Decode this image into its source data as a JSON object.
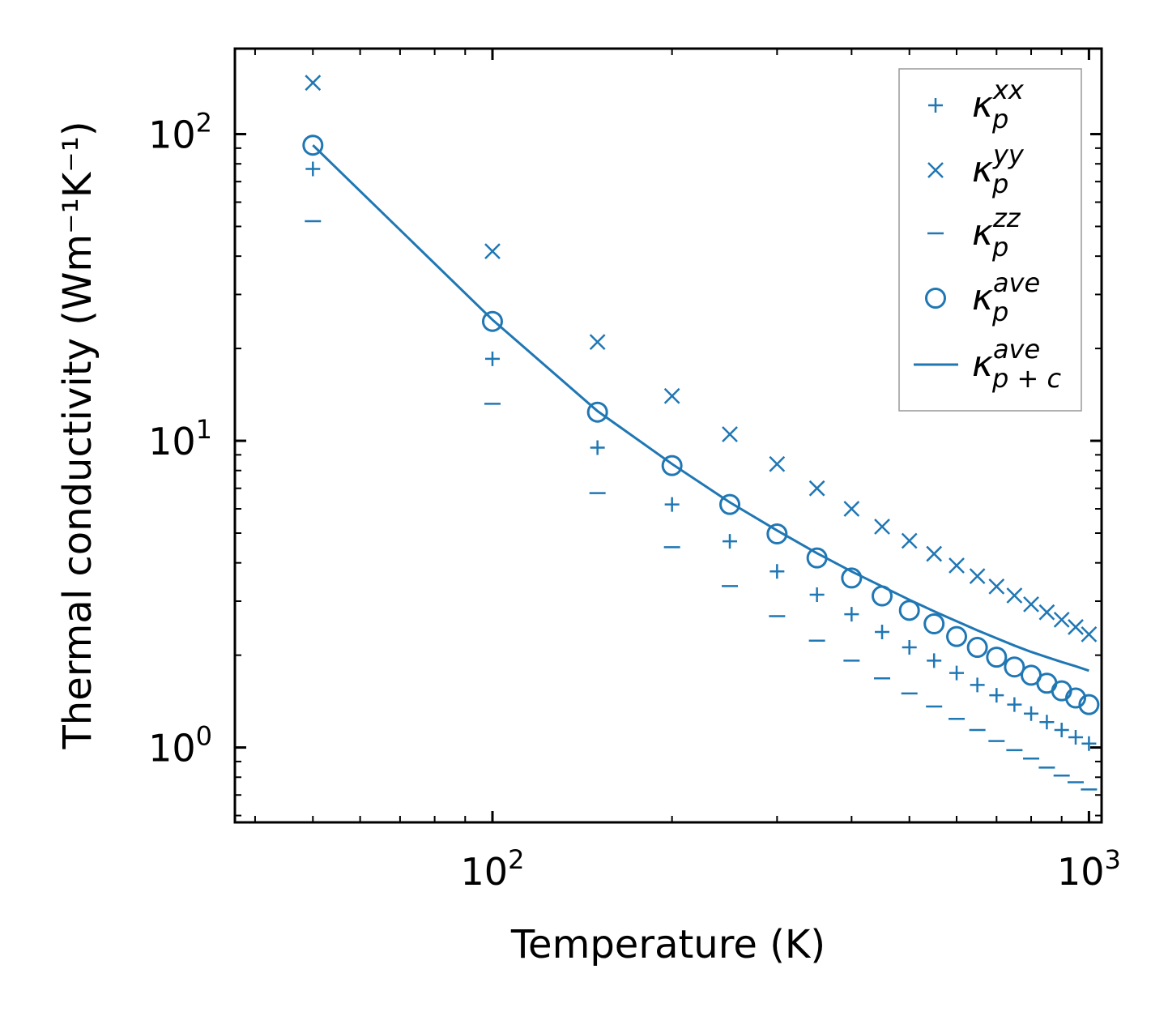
{
  "chart_data": {
    "type": "scatter",
    "title": "",
    "xlabel": "Temperature (K)",
    "ylabel": "Thermal conductivity (Wm⁻¹K⁻¹)",
    "xscale": "log",
    "yscale": "log",
    "xlim": [
      37,
      1050
    ],
    "ylim": [
      0.57,
      190
    ],
    "x_ticks": [
      {
        "value": 100,
        "base": "10",
        "exp": "2"
      },
      {
        "value": 1000,
        "base": "10",
        "exp": "3"
      }
    ],
    "y_ticks": [
      {
        "value": 1,
        "base": "10",
        "exp": "0"
      },
      {
        "value": 10,
        "base": "10",
        "exp": "1"
      },
      {
        "value": 100,
        "base": "10",
        "exp": "2"
      }
    ],
    "color": "#1f77b4",
    "legend_position": "top-right",
    "x": [
      50,
      100,
      150,
      200,
      250,
      300,
      350,
      400,
      450,
      500,
      550,
      600,
      650,
      700,
      750,
      800,
      850,
      900,
      950,
      1000
    ],
    "series": [
      {
        "name": "xx",
        "marker": "plus",
        "legend": {
          "base": "κ",
          "sup": "xx",
          "sub": "p"
        },
        "values": [
          77,
          18.5,
          9.5,
          6.2,
          4.7,
          3.75,
          3.15,
          2.72,
          2.38,
          2.12,
          1.92,
          1.75,
          1.6,
          1.48,
          1.38,
          1.29,
          1.21,
          1.14,
          1.08,
          1.03
        ]
      },
      {
        "name": "yy",
        "marker": "x",
        "legend": {
          "base": "κ",
          "sup": "yy",
          "sub": "p"
        },
        "values": [
          147,
          41.5,
          21,
          14,
          10.5,
          8.4,
          7.0,
          6.0,
          5.25,
          4.72,
          4.28,
          3.92,
          3.62,
          3.35,
          3.13,
          2.93,
          2.76,
          2.61,
          2.47,
          2.34
        ]
      },
      {
        "name": "zz",
        "marker": "dash",
        "legend": {
          "base": "κ",
          "sup": "zz",
          "sub": "p"
        },
        "values": [
          52,
          13.2,
          6.75,
          4.5,
          3.36,
          2.68,
          2.23,
          1.92,
          1.68,
          1.5,
          1.36,
          1.24,
          1.14,
          1.05,
          0.98,
          0.92,
          0.86,
          0.81,
          0.77,
          0.73
        ]
      },
      {
        "name": "ave",
        "marker": "circle",
        "legend": {
          "base": "κ",
          "sup": "ave",
          "sub": "p"
        },
        "values": [
          92,
          24.5,
          12.4,
          8.3,
          6.2,
          4.97,
          4.15,
          3.57,
          3.12,
          2.8,
          2.53,
          2.3,
          2.12,
          1.97,
          1.83,
          1.72,
          1.62,
          1.53,
          1.45,
          1.38
        ]
      },
      {
        "name": "ave_pc",
        "marker": "line",
        "legend": {
          "base": "κ",
          "sup": "ave",
          "sub": "p + c"
        },
        "values": [
          92,
          24.8,
          12.5,
          8.4,
          6.3,
          5.1,
          4.3,
          3.75,
          3.35,
          3.03,
          2.78,
          2.58,
          2.41,
          2.27,
          2.15,
          2.05,
          1.97,
          1.9,
          1.84,
          1.78
        ]
      }
    ]
  }
}
